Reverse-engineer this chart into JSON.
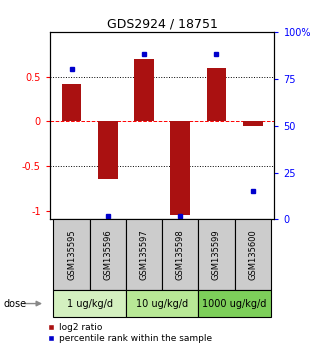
{
  "title": "GDS2924 / 18751",
  "samples": [
    "GSM135595",
    "GSM135596",
    "GSM135597",
    "GSM135598",
    "GSM135599",
    "GSM135600"
  ],
  "log2_ratio": [
    0.42,
    -0.65,
    0.7,
    -1.05,
    0.6,
    -0.05
  ],
  "percentile_rank": [
    80,
    2,
    88,
    2,
    88,
    15
  ],
  "dose_groups": [
    {
      "label": "1 ug/kg/d",
      "samples": [
        0,
        1
      ],
      "color": "#d4f0c0"
    },
    {
      "label": "10 ug/kg/d",
      "samples": [
        2,
        3
      ],
      "color": "#b8e896"
    },
    {
      "label": "1000 ug/kg/d",
      "samples": [
        4,
        5
      ],
      "color": "#7dcf5a"
    }
  ],
  "bar_color": "#aa1111",
  "dot_color": "#0000cc",
  "ylim_left": [
    -1.1,
    1.0
  ],
  "ylim_right": [
    0,
    100
  ],
  "yticks_left": [
    -1,
    -0.5,
    0,
    0.5
  ],
  "yticks_right": [
    0,
    25,
    50,
    75,
    100
  ],
  "ytick_labels_left": [
    "-1",
    "-0.5",
    "0",
    "0.5"
  ],
  "ytick_labels_right": [
    "0",
    "25",
    "50",
    "75",
    "100%"
  ],
  "hlines": [
    0.5,
    0.0,
    -0.5
  ],
  "hline_colors": [
    "black",
    "red",
    "black"
  ],
  "sample_box_color": "#cccccc",
  "legend_red_label": "log2 ratio",
  "legend_blue_label": "percentile rank within the sample",
  "dose_label": "dose"
}
